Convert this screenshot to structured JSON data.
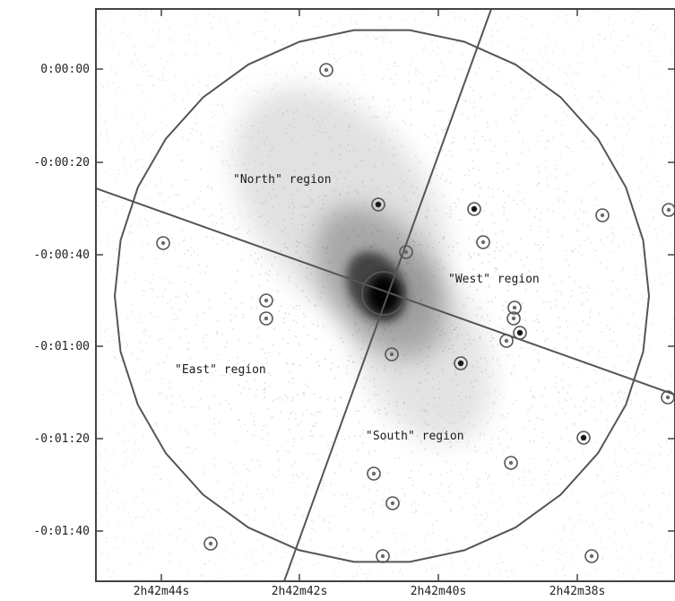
{
  "image": {
    "kind": "x-ray-image-with-region-overlays",
    "colors": {
      "frame": "#444444",
      "overlay_lines": "#555555",
      "speckle": "#9a9a9a",
      "emission_core": "#0f0f0f",
      "background": "#ffffff"
    }
  },
  "axes": {
    "x_ticks": [
      "2h42m44s",
      "2h42m42s",
      "2h42m40s",
      "2h42m38s"
    ],
    "y_ticks": [
      "0:00:00",
      "-0:00:20",
      "-0:00:40",
      "-0:01:00",
      "-0:01:20",
      "-0:01:40"
    ]
  },
  "regions": {
    "north": "\"North\" region",
    "west": "\"West\" region",
    "east": "\"East\" region",
    "south": "\"South\" region"
  },
  "point_sources": {
    "count": 26,
    "marker": "circle"
  }
}
